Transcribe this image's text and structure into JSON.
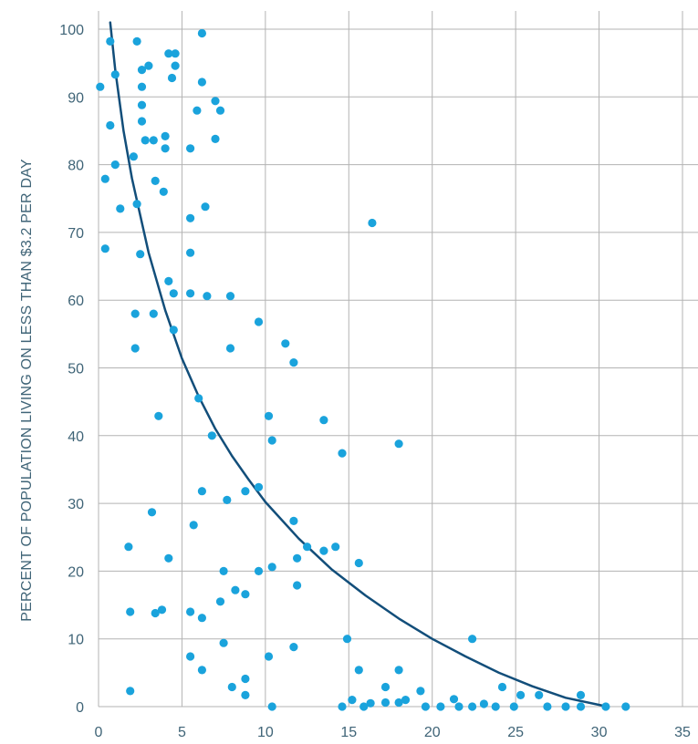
{
  "chart_data": {
    "type": "scatter",
    "title": "",
    "xlabel": "",
    "ylabel": "PERCENT OF POPULATION LIVING ON LESS THAN $3.2 PER DAY",
    "xlim": [
      0,
      35
    ],
    "ylim": [
      0,
      100
    ],
    "x_ticks": [
      0,
      5,
      10,
      15,
      20,
      25,
      30,
      35
    ],
    "y_ticks": [
      0,
      10,
      20,
      30,
      40,
      50,
      60,
      70,
      80,
      90,
      100
    ],
    "grid": true,
    "legend": "none",
    "colors": {
      "points": "#1aa3dc",
      "trend": "#124e7a",
      "grid": "#b3b3b3",
      "text": "#3f6477"
    },
    "points": [
      [
        0.1,
        91.5
      ],
      [
        0.7,
        98.2
      ],
      [
        1.0,
        93.3
      ],
      [
        0.4,
        77.9
      ],
      [
        0.7,
        85.8
      ],
      [
        1.0,
        80.0
      ],
      [
        1.3,
        73.5
      ],
      [
        0.4,
        67.6
      ],
      [
        2.3,
        98.2
      ],
      [
        2.6,
        94.0
      ],
      [
        3.0,
        94.6
      ],
      [
        2.6,
        91.5
      ],
      [
        2.6,
        88.8
      ],
      [
        2.6,
        86.4
      ],
      [
        2.8,
        83.6
      ],
      [
        3.3,
        83.6
      ],
      [
        2.1,
        81.2
      ],
      [
        4.0,
        84.2
      ],
      [
        4.0,
        82.4
      ],
      [
        3.4,
        77.6
      ],
      [
        2.3,
        74.2
      ],
      [
        3.9,
        76.0
      ],
      [
        4.2,
        96.4
      ],
      [
        4.6,
        96.4
      ],
      [
        4.4,
        92.8
      ],
      [
        4.6,
        94.6
      ],
      [
        6.2,
        99.4
      ],
      [
        6.2,
        92.2
      ],
      [
        7.0,
        89.4
      ],
      [
        5.9,
        88.0
      ],
      [
        7.3,
        88.0
      ],
      [
        7.0,
        83.8
      ],
      [
        5.5,
        82.4
      ],
      [
        6.4,
        73.8
      ],
      [
        5.5,
        72.1
      ],
      [
        2.5,
        66.8
      ],
      [
        5.5,
        67.0
      ],
      [
        4.2,
        62.8
      ],
      [
        4.5,
        61.0
      ],
      [
        5.5,
        61.0
      ],
      [
        6.5,
        60.6
      ],
      [
        7.9,
        60.6
      ],
      [
        2.2,
        58.0
      ],
      [
        3.3,
        58.0
      ],
      [
        4.5,
        55.6
      ],
      [
        2.2,
        52.9
      ],
      [
        7.9,
        52.9
      ],
      [
        9.6,
        56.8
      ],
      [
        11.2,
        53.6
      ],
      [
        11.7,
        50.8
      ],
      [
        16.4,
        71.4
      ],
      [
        6.0,
        45.5
      ],
      [
        3.6,
        42.9
      ],
      [
        6.8,
        40.0
      ],
      [
        10.2,
        42.9
      ],
      [
        10.4,
        39.3
      ],
      [
        13.5,
        42.3
      ],
      [
        14.6,
        37.4
      ],
      [
        18.0,
        38.8
      ],
      [
        6.2,
        31.8
      ],
      [
        7.7,
        30.5
      ],
      [
        8.8,
        31.8
      ],
      [
        9.6,
        32.4
      ],
      [
        3.2,
        28.7
      ],
      [
        5.7,
        26.8
      ],
      [
        1.8,
        23.6
      ],
      [
        4.2,
        21.9
      ],
      [
        7.5,
        20.0
      ],
      [
        9.6,
        20.0
      ],
      [
        10.4,
        20.6
      ],
      [
        11.7,
        27.4
      ],
      [
        11.9,
        21.9
      ],
      [
        12.5,
        23.6
      ],
      [
        13.5,
        23.0
      ],
      [
        14.2,
        23.6
      ],
      [
        15.6,
        21.2
      ],
      [
        11.9,
        17.9
      ],
      [
        8.2,
        17.2
      ],
      [
        8.8,
        16.6
      ],
      [
        7.3,
        15.5
      ],
      [
        1.9,
        14.0
      ],
      [
        3.4,
        13.8
      ],
      [
        3.8,
        14.3
      ],
      [
        5.5,
        14.0
      ],
      [
        6.2,
        13.1
      ],
      [
        7.5,
        9.4
      ],
      [
        5.5,
        7.4
      ],
      [
        10.2,
        7.4
      ],
      [
        11.7,
        8.8
      ],
      [
        14.9,
        10.0
      ],
      [
        22.4,
        10.0
      ],
      [
        6.2,
        5.4
      ],
      [
        15.6,
        5.4
      ],
      [
        18.0,
        5.4
      ],
      [
        8.0,
        2.9
      ],
      [
        8.8,
        4.1
      ],
      [
        8.8,
        1.7
      ],
      [
        1.9,
        2.3
      ],
      [
        10.4,
        0.0
      ],
      [
        14.6,
        0.0
      ],
      [
        15.2,
        1.0
      ],
      [
        15.9,
        0.0
      ],
      [
        16.3,
        0.5
      ],
      [
        17.2,
        2.9
      ],
      [
        17.2,
        0.6
      ],
      [
        18.0,
        0.6
      ],
      [
        18.4,
        1.0
      ],
      [
        19.3,
        2.3
      ],
      [
        19.6,
        0.0
      ],
      [
        20.5,
        0.0
      ],
      [
        21.3,
        1.1
      ],
      [
        21.6,
        0.0
      ],
      [
        22.4,
        0.0
      ],
      [
        23.1,
        0.4
      ],
      [
        23.8,
        0.0
      ],
      [
        24.2,
        2.9
      ],
      [
        24.9,
        0.0
      ],
      [
        25.3,
        1.7
      ],
      [
        26.4,
        1.7
      ],
      [
        26.9,
        0.0
      ],
      [
        28.0,
        0.0
      ],
      [
        28.9,
        1.7
      ],
      [
        28.9,
        0.0
      ],
      [
        30.4,
        0.0
      ],
      [
        31.6,
        0.0
      ]
    ],
    "trend_line": [
      [
        0.7,
        101
      ],
      [
        1.0,
        94
      ],
      [
        1.5,
        85
      ],
      [
        2,
        78
      ],
      [
        3,
        67
      ],
      [
        4,
        58.5
      ],
      [
        5,
        51.4
      ],
      [
        6,
        45.8
      ],
      [
        7,
        41
      ],
      [
        8,
        37
      ],
      [
        9,
        33.5
      ],
      [
        10,
        30.2
      ],
      [
        12,
        24.8
      ],
      [
        14,
        20.2
      ],
      [
        16,
        16.4
      ],
      [
        18,
        13.0
      ],
      [
        20,
        10.0
      ],
      [
        22,
        7.4
      ],
      [
        24,
        5.0
      ],
      [
        26,
        3.0
      ],
      [
        28,
        1.3
      ],
      [
        30.5,
        0.0
      ]
    ]
  }
}
